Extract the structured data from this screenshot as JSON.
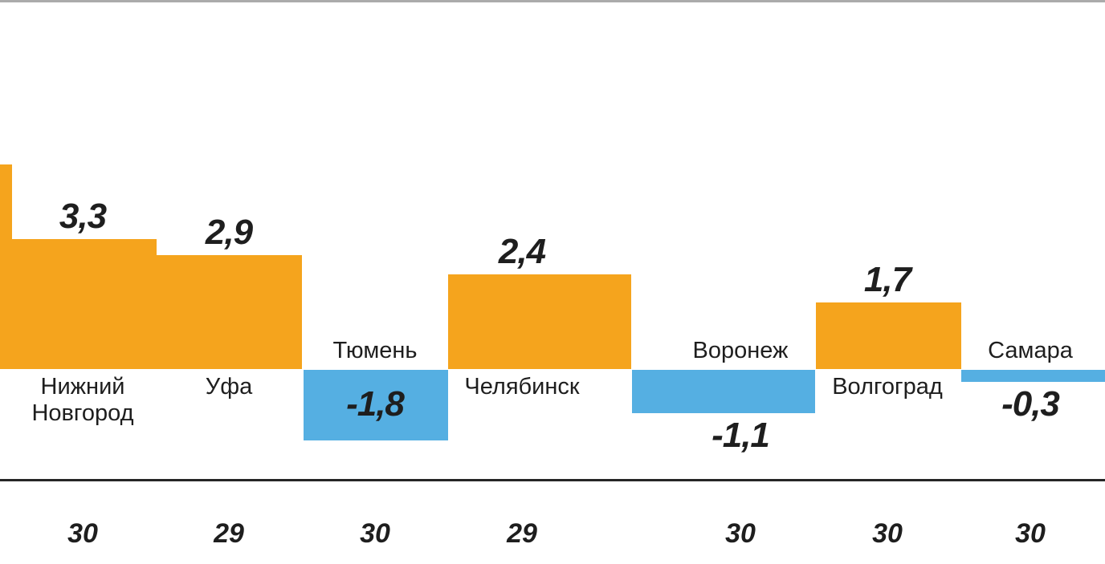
{
  "chart_data": {
    "type": "bar",
    "title": "",
    "categories": [
      "Нижний Новгород",
      "Уфа",
      "Тюмень",
      "Челябинск",
      "Воронеж",
      "Волгоград",
      "Самара"
    ],
    "values": [
      3.3,
      2.9,
      -1.8,
      2.4,
      -1.1,
      1.7,
      -0.3
    ],
    "value_labels": [
      "3,3",
      "2,9",
      "-1,8",
      "2,4",
      "-1,1",
      "1,7",
      "-0,3"
    ],
    "x_tick_labels": [
      "30",
      "29",
      "30",
      "29",
      "30",
      "30",
      "30"
    ],
    "partial_left_bar": {
      "clipped": true,
      "estimated_value": 5.2
    },
    "axis": {
      "baseline_value": 0,
      "x_axis_line": true
    },
    "grid": false,
    "legend": "none",
    "ylim": [
      -2.2,
      5.5
    ]
  },
  "colors": {
    "positive_bar": "#F5A41D",
    "negative_bar": "#55AFE2",
    "text": "#1E1E1E",
    "axis_line": "#262626",
    "top_divider": "#ABABAB",
    "background": "#FFFFFF"
  }
}
